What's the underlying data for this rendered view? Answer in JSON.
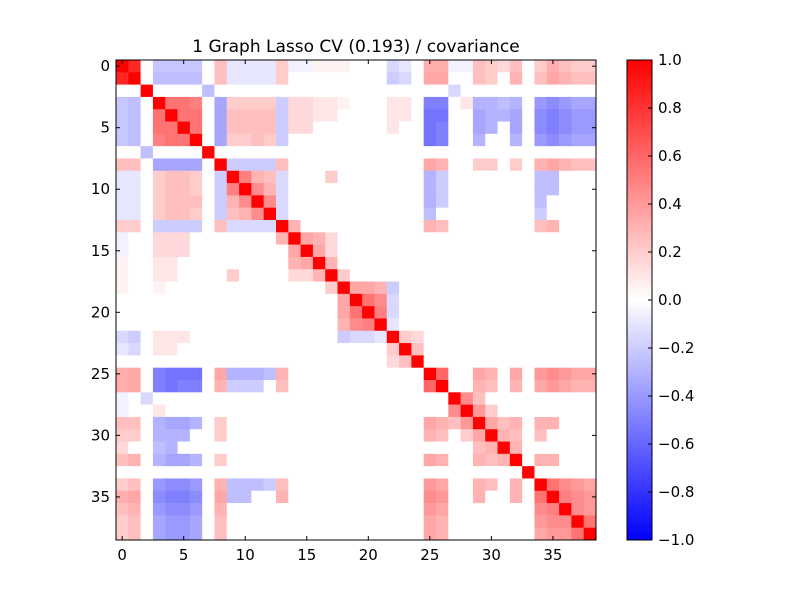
{
  "chart_data": {
    "type": "heatmap",
    "title": "1 Graph Lasso CV (0.193) / covariance",
    "xlabel": "",
    "ylabel": "",
    "n": 39,
    "x_ticks": [
      0,
      5,
      10,
      15,
      20,
      25,
      30,
      35
    ],
    "y_ticks": [
      0,
      5,
      10,
      15,
      20,
      25,
      30,
      35
    ],
    "grid": false,
    "colorbar": {
      "range": [
        -1.0,
        1.0
      ],
      "ticks": [
        1.0,
        0.8,
        0.6,
        0.4,
        0.2,
        0.0,
        -0.2,
        -0.4,
        -0.6,
        -0.8,
        -1.0
      ],
      "tick_labels": [
        "1.0",
        "0.8",
        "0.6",
        "0.4",
        "0.2",
        "0.0",
        "−0.2",
        "−0.4",
        "−0.6",
        "−0.8",
        "−1.0"
      ],
      "colormap": "bwr",
      "colors": {
        "low": "#0000ff",
        "mid": "#ffffff",
        "high": "#ff0000"
      }
    },
    "diagonal_value": 1.0,
    "off_diagonal_entries": [
      [
        0,
        1,
        0.85
      ],
      [
        0,
        3,
        -0.22
      ],
      [
        0,
        4,
        -0.22
      ],
      [
        0,
        5,
        -0.22
      ],
      [
        0,
        6,
        -0.22
      ],
      [
        0,
        8,
        0.25
      ],
      [
        0,
        9,
        -0.1
      ],
      [
        0,
        10,
        -0.1
      ],
      [
        0,
        11,
        -0.1
      ],
      [
        0,
        12,
        -0.1
      ],
      [
        0,
        13,
        0.2
      ],
      [
        0,
        14,
        -0.05
      ],
      [
        0,
        15,
        -0.05
      ],
      [
        0,
        16,
        0.05
      ],
      [
        0,
        17,
        0.05
      ],
      [
        0,
        18,
        0.05
      ],
      [
        0,
        22,
        -0.15
      ],
      [
        0,
        23,
        -0.1
      ],
      [
        0,
        25,
        0.32
      ],
      [
        0,
        26,
        0.32
      ],
      [
        0,
        27,
        -0.05
      ],
      [
        0,
        28,
        -0.05
      ],
      [
        0,
        29,
        0.25
      ],
      [
        0,
        30,
        0.2
      ],
      [
        0,
        31,
        0.15
      ],
      [
        0,
        32,
        0.25
      ],
      [
        0,
        34,
        0.2
      ],
      [
        0,
        35,
        0.32
      ],
      [
        0,
        36,
        0.25
      ],
      [
        0,
        37,
        0.2
      ],
      [
        0,
        38,
        0.2
      ],
      [
        1,
        3,
        -0.25
      ],
      [
        1,
        4,
        -0.25
      ],
      [
        1,
        5,
        -0.25
      ],
      [
        1,
        6,
        -0.25
      ],
      [
        1,
        8,
        0.25
      ],
      [
        1,
        9,
        -0.1
      ],
      [
        1,
        10,
        -0.1
      ],
      [
        1,
        11,
        -0.1
      ],
      [
        1,
        12,
        -0.1
      ],
      [
        1,
        13,
        0.2
      ],
      [
        1,
        22,
        -0.2
      ],
      [
        1,
        23,
        -0.15
      ],
      [
        1,
        25,
        0.35
      ],
      [
        1,
        26,
        0.35
      ],
      [
        1,
        29,
        0.25
      ],
      [
        1,
        30,
        0.2
      ],
      [
        1,
        32,
        0.3
      ],
      [
        1,
        34,
        0.25
      ],
      [
        1,
        35,
        0.35
      ],
      [
        1,
        36,
        0.3
      ],
      [
        1,
        37,
        0.25
      ],
      [
        1,
        38,
        0.25
      ],
      [
        2,
        7,
        -0.25
      ],
      [
        2,
        27,
        -0.15
      ],
      [
        3,
        4,
        0.55
      ],
      [
        3,
        5,
        0.55
      ],
      [
        3,
        6,
        0.5
      ],
      [
        3,
        8,
        -0.35
      ],
      [
        3,
        9,
        0.2
      ],
      [
        3,
        10,
        0.2
      ],
      [
        3,
        11,
        0.2
      ],
      [
        3,
        12,
        0.2
      ],
      [
        3,
        13,
        -0.2
      ],
      [
        3,
        14,
        0.15
      ],
      [
        3,
        15,
        0.15
      ],
      [
        3,
        16,
        0.1
      ],
      [
        3,
        17,
        0.1
      ],
      [
        3,
        18,
        0.05
      ],
      [
        3,
        22,
        0.1
      ],
      [
        3,
        23,
        0.1
      ],
      [
        3,
        25,
        -0.5
      ],
      [
        3,
        26,
        -0.5
      ],
      [
        3,
        28,
        0.1
      ],
      [
        3,
        29,
        -0.3
      ],
      [
        3,
        30,
        -0.3
      ],
      [
        3,
        31,
        -0.25
      ],
      [
        3,
        32,
        -0.3
      ],
      [
        3,
        34,
        -0.4
      ],
      [
        3,
        35,
        -0.45
      ],
      [
        3,
        36,
        -0.4
      ],
      [
        3,
        37,
        -0.35
      ],
      [
        3,
        38,
        -0.35
      ],
      [
        4,
        5,
        0.55
      ],
      [
        4,
        6,
        0.55
      ],
      [
        4,
        8,
        -0.35
      ],
      [
        4,
        9,
        0.25
      ],
      [
        4,
        10,
        0.25
      ],
      [
        4,
        11,
        0.25
      ],
      [
        4,
        12,
        0.25
      ],
      [
        4,
        13,
        -0.2
      ],
      [
        4,
        14,
        0.15
      ],
      [
        4,
        15,
        0.15
      ],
      [
        4,
        16,
        0.1
      ],
      [
        4,
        17,
        0.1
      ],
      [
        4,
        22,
        0.1
      ],
      [
        4,
        23,
        0.1
      ],
      [
        4,
        25,
        -0.55
      ],
      [
        4,
        26,
        -0.55
      ],
      [
        4,
        29,
        -0.35
      ],
      [
        4,
        30,
        -0.3
      ],
      [
        4,
        31,
        -0.3
      ],
      [
        4,
        32,
        -0.35
      ],
      [
        4,
        34,
        -0.45
      ],
      [
        4,
        35,
        -0.5
      ],
      [
        4,
        36,
        -0.45
      ],
      [
        4,
        37,
        -0.4
      ],
      [
        4,
        38,
        -0.4
      ],
      [
        5,
        6,
        0.55
      ],
      [
        5,
        8,
        -0.35
      ],
      [
        5,
        9,
        0.25
      ],
      [
        5,
        10,
        0.25
      ],
      [
        5,
        11,
        0.25
      ],
      [
        5,
        12,
        0.25
      ],
      [
        5,
        13,
        -0.2
      ],
      [
        5,
        14,
        0.15
      ],
      [
        5,
        15,
        0.15
      ],
      [
        5,
        22,
        0.1
      ],
      [
        5,
        25,
        -0.55
      ],
      [
        5,
        26,
        -0.5
      ],
      [
        5,
        29,
        -0.35
      ],
      [
        5,
        30,
        -0.3
      ],
      [
        5,
        32,
        -0.35
      ],
      [
        5,
        34,
        -0.45
      ],
      [
        5,
        35,
        -0.5
      ],
      [
        5,
        36,
        -0.45
      ],
      [
        5,
        37,
        -0.4
      ],
      [
        5,
        38,
        -0.4
      ],
      [
        6,
        8,
        -0.35
      ],
      [
        6,
        9,
        0.2
      ],
      [
        6,
        10,
        0.2
      ],
      [
        6,
        11,
        0.25
      ],
      [
        6,
        12,
        0.2
      ],
      [
        6,
        13,
        -0.2
      ],
      [
        6,
        25,
        -0.55
      ],
      [
        6,
        26,
        -0.5
      ],
      [
        6,
        29,
        -0.3
      ],
      [
        6,
        32,
        -0.3
      ],
      [
        6,
        34,
        -0.4
      ],
      [
        6,
        35,
        -0.45
      ],
      [
        6,
        36,
        -0.4
      ],
      [
        6,
        37,
        -0.35
      ],
      [
        6,
        38,
        -0.35
      ],
      [
        8,
        9,
        -0.2
      ],
      [
        8,
        10,
        -0.2
      ],
      [
        8,
        11,
        -0.2
      ],
      [
        8,
        12,
        -0.2
      ],
      [
        8,
        13,
        0.25
      ],
      [
        8,
        25,
        0.35
      ],
      [
        8,
        26,
        0.3
      ],
      [
        8,
        29,
        0.2
      ],
      [
        8,
        30,
        0.2
      ],
      [
        8,
        32,
        0.2
      ],
      [
        8,
        34,
        0.3
      ],
      [
        8,
        35,
        0.35
      ],
      [
        8,
        36,
        0.3
      ],
      [
        8,
        37,
        0.25
      ],
      [
        8,
        38,
        0.25
      ],
      [
        9,
        10,
        0.5
      ],
      [
        9,
        11,
        0.3
      ],
      [
        9,
        12,
        0.25
      ],
      [
        9,
        13,
        -0.15
      ],
      [
        9,
        17,
        0.2
      ],
      [
        9,
        25,
        -0.3
      ],
      [
        9,
        26,
        -0.2
      ],
      [
        9,
        34,
        -0.25
      ],
      [
        9,
        35,
        -0.25
      ],
      [
        10,
        11,
        0.45
      ],
      [
        10,
        12,
        0.3
      ],
      [
        10,
        13,
        -0.15
      ],
      [
        10,
        25,
        -0.3
      ],
      [
        10,
        26,
        -0.2
      ],
      [
        10,
        34,
        -0.25
      ],
      [
        10,
        35,
        -0.25
      ],
      [
        11,
        12,
        0.45
      ],
      [
        11,
        13,
        -0.15
      ],
      [
        11,
        25,
        -0.3
      ],
      [
        11,
        26,
        -0.2
      ],
      [
        11,
        34,
        -0.25
      ],
      [
        12,
        13,
        -0.15
      ],
      [
        12,
        25,
        -0.25
      ],
      [
        12,
        34,
        -0.2
      ],
      [
        13,
        14,
        0.3
      ],
      [
        13,
        25,
        0.3
      ],
      [
        13,
        26,
        0.25
      ],
      [
        13,
        34,
        0.25
      ],
      [
        13,
        35,
        0.3
      ],
      [
        14,
        15,
        0.35
      ],
      [
        14,
        16,
        0.3
      ],
      [
        14,
        17,
        0.15
      ],
      [
        15,
        16,
        0.35
      ],
      [
        15,
        17,
        0.15
      ],
      [
        16,
        17,
        0.3
      ],
      [
        17,
        18,
        0.2
      ],
      [
        18,
        19,
        0.35
      ],
      [
        18,
        20,
        0.35
      ],
      [
        18,
        21,
        0.3
      ],
      [
        18,
        22,
        -0.2
      ],
      [
        19,
        20,
        0.55
      ],
      [
        19,
        21,
        0.45
      ],
      [
        19,
        22,
        -0.15
      ],
      [
        20,
        21,
        0.5
      ],
      [
        20,
        22,
        -0.15
      ],
      [
        21,
        22,
        -0.1
      ],
      [
        22,
        23,
        0.2
      ],
      [
        22,
        24,
        0.15
      ],
      [
        23,
        24,
        0.25
      ],
      [
        25,
        26,
        0.6
      ],
      [
        25,
        29,
        0.35
      ],
      [
        25,
        30,
        0.3
      ],
      [
        25,
        32,
        0.35
      ],
      [
        25,
        34,
        0.4
      ],
      [
        25,
        35,
        0.45
      ],
      [
        25,
        36,
        0.4
      ],
      [
        25,
        37,
        0.35
      ],
      [
        25,
        38,
        0.35
      ],
      [
        26,
        29,
        0.3
      ],
      [
        26,
        30,
        0.25
      ],
      [
        26,
        32,
        0.3
      ],
      [
        26,
        34,
        0.35
      ],
      [
        26,
        35,
        0.4
      ],
      [
        26,
        36,
        0.35
      ],
      [
        26,
        37,
        0.3
      ],
      [
        26,
        38,
        0.3
      ],
      [
        27,
        28,
        0.45
      ],
      [
        27,
        29,
        0.25
      ],
      [
        28,
        29,
        0.4
      ],
      [
        28,
        30,
        0.2
      ],
      [
        29,
        30,
        0.35
      ],
      [
        29,
        31,
        0.25
      ],
      [
        29,
        32,
        0.3
      ],
      [
        29,
        34,
        0.3
      ],
      [
        29,
        35,
        0.3
      ],
      [
        30,
        31,
        0.3
      ],
      [
        30,
        32,
        0.25
      ],
      [
        30,
        34,
        0.25
      ],
      [
        31,
        32,
        0.3
      ],
      [
        32,
        34,
        0.3
      ],
      [
        32,
        35,
        0.3
      ],
      [
        34,
        35,
        0.55
      ],
      [
        34,
        36,
        0.45
      ],
      [
        34,
        37,
        0.4
      ],
      [
        34,
        38,
        0.35
      ],
      [
        35,
        36,
        0.5
      ],
      [
        35,
        37,
        0.45
      ],
      [
        35,
        38,
        0.4
      ],
      [
        36,
        37,
        0.45
      ],
      [
        36,
        38,
        0.4
      ],
      [
        37,
        38,
        0.55
      ]
    ]
  }
}
